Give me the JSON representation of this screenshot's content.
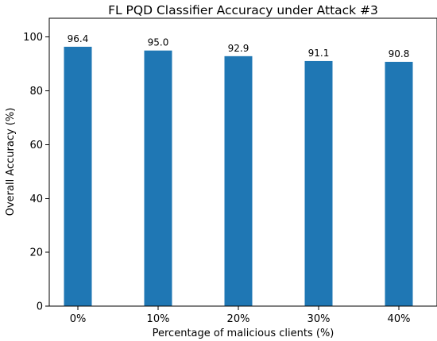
{
  "chart_data": {
    "type": "bar",
    "title": "FL PQD Classifier Accuracy under Attack #3",
    "xlabel": "Percentage of malicious clients (%)",
    "ylabel": "Overall Accuracy (%)",
    "categories": [
      "0%",
      "10%",
      "20%",
      "30%",
      "40%"
    ],
    "values": [
      96.4,
      95.0,
      92.9,
      91.1,
      90.8
    ],
    "data_labels": [
      "96.4",
      "95.0",
      "92.9",
      "91.1",
      "90.8"
    ],
    "ylim": [
      0,
      107
    ],
    "yticks": [
      0,
      20,
      40,
      60,
      80,
      100
    ],
    "ytick_labels": [
      "0",
      "20",
      "40",
      "60",
      "80",
      "100"
    ],
    "bar_color": "#1f77b4",
    "grid": false,
    "legend": "none"
  }
}
